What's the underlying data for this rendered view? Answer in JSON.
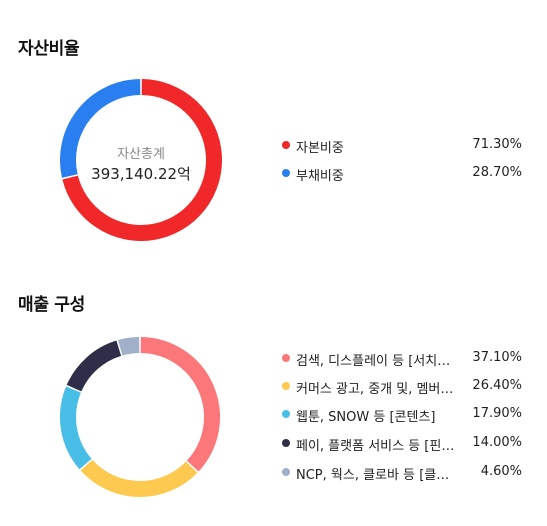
{
  "asset_section": {
    "title": "자산비율",
    "center_label": "자산총계",
    "center_value": "393,140.22억",
    "items": [
      {
        "label": "자본비중",
        "value": "71.30%",
        "percent": 71.3,
        "color": "#f0282a"
      },
      {
        "label": "부채비중",
        "value": "28.70%",
        "percent": 28.7,
        "color": "#2a7ff0"
      }
    ]
  },
  "sales_section": {
    "title": "매출 구성",
    "items": [
      {
        "label": "검색, 디스플레이 등 [서치플랫폼]",
        "value": "37.10%",
        "percent": 37.1,
        "color": "#fb7779"
      },
      {
        "label": "커머스 광고, 중개 및, 멤버십 등",
        "value": "26.40%",
        "percent": 26.4,
        "color": "#fdc94f"
      },
      {
        "label": "웹툰, SNOW 등 [콘텐츠]",
        "value": "17.90%",
        "percent": 17.9,
        "color": "#48bde5"
      },
      {
        "label": "페이, 플랫폼 서비스 등 [핀테크]",
        "value": "14.00%",
        "percent": 14.0,
        "color": "#2e2e48"
      },
      {
        "label": "NCP, 웍스, 클로바 등 [클라우드]",
        "value": "4.60%",
        "percent": 4.6,
        "color": "#9fb0c8"
      }
    ]
  }
}
